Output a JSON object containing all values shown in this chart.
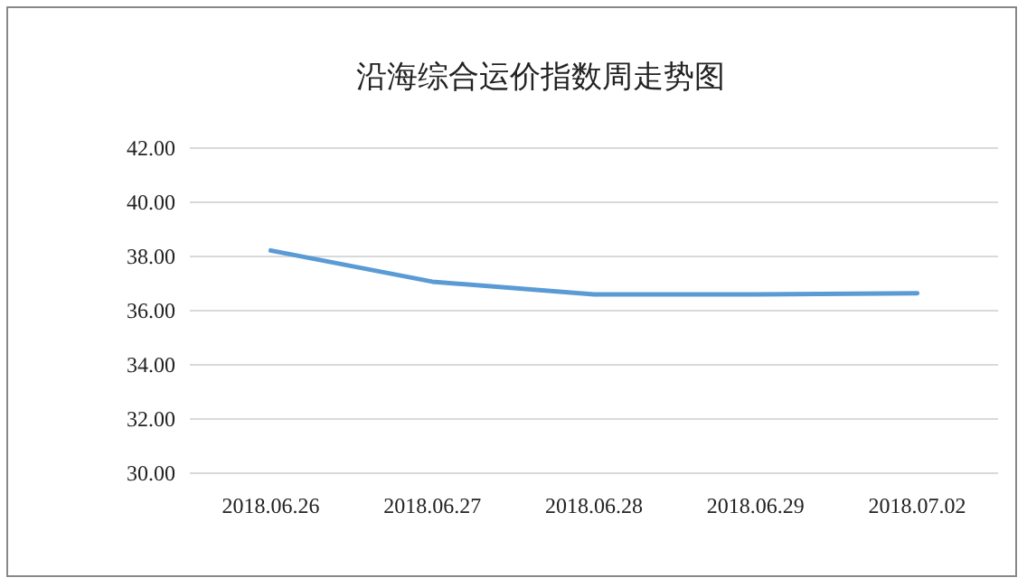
{
  "chart_data": {
    "type": "line",
    "title": "沿海综合运价指数周走势图",
    "categories": [
      "2018.06.26",
      "2018.06.27",
      "2018.06.28",
      "2018.06.29",
      "2018.07.02"
    ],
    "series": [
      {
        "color": "#5b9bd5",
        "values": [
          38.22,
          37.07,
          36.6,
          36.6,
          36.64
        ]
      }
    ],
    "ylim": [
      30,
      42
    ],
    "yticks": [
      {
        "value": 30,
        "label": "30.00"
      },
      {
        "value": 32,
        "label": "32.00"
      },
      {
        "value": 34,
        "label": "34.00"
      },
      {
        "value": 36,
        "label": "36.00"
      },
      {
        "value": 38,
        "label": "38.00"
      },
      {
        "value": 40,
        "label": "40.00"
      },
      {
        "value": 42,
        "label": "42.00"
      }
    ],
    "grid": "y",
    "marker": "none",
    "line_style": "solid"
  }
}
